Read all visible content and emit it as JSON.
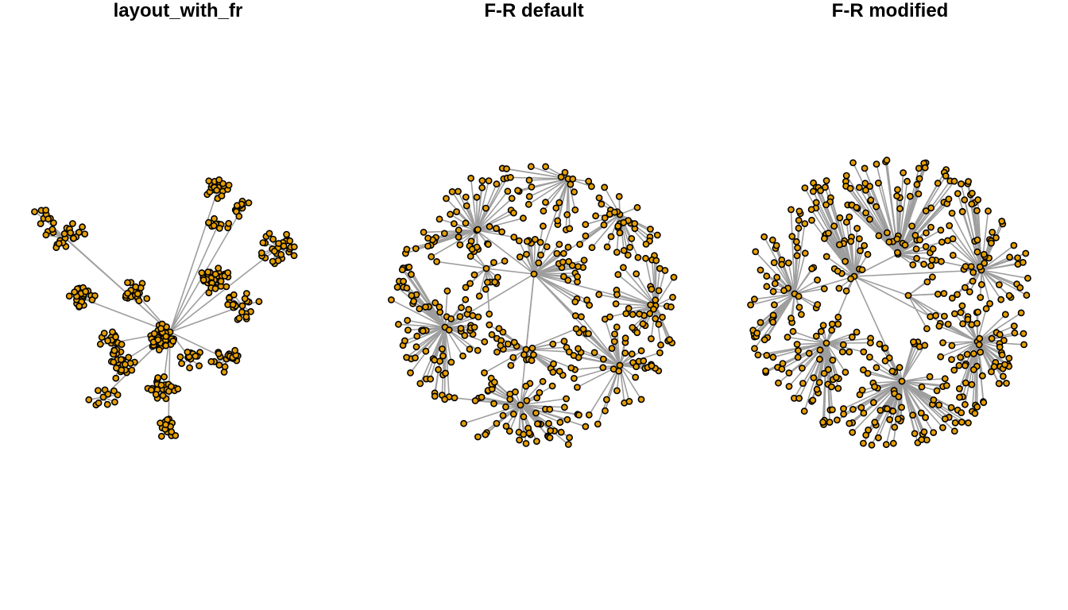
{
  "panels": [
    {
      "title": "layout_with_fr"
    },
    {
      "title": "F-R default"
    },
    {
      "title": "F-R modified"
    }
  ],
  "style": {
    "node_fill": "#E69F00",
    "node_stroke": "#000000",
    "edge_color": "#9E9E9E",
    "background": "#FFFFFF"
  },
  "graph": {
    "type": "tree",
    "layout": "force-directed (Fruchterman-Reingold)"
  }
}
